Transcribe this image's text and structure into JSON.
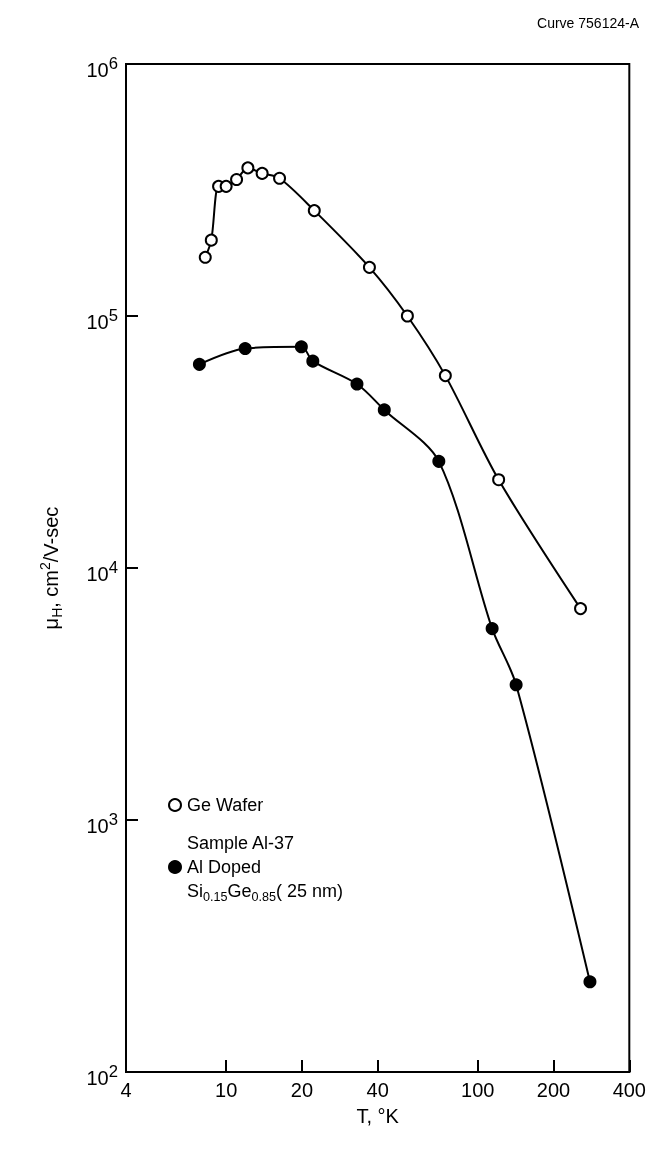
{
  "chart_data": {
    "type": "line",
    "xlabel": "T, °K",
    "ylabel": "μ$_{H}$, cm$^{2}$/V-sec",
    "annotations": [
      "Curve 756124-A"
    ],
    "log": "xy",
    "grid": false,
    "legend": "left",
    "line_style": "solid",
    "xlim": [
      4,
      400
    ],
    "xticks": [
      4,
      10,
      20,
      40,
      100,
      200,
      400
    ],
    "ylim": [
      100,
      1000000
    ],
    "yticks": [
      {
        "value": 100,
        "label": "10$^{2}$"
      },
      {
        "value": 1000,
        "label": "10$^{3}$"
      },
      {
        "value": 10000,
        "label": "10$^{4}$"
      },
      {
        "value": 100000,
        "label": "10$^{5}$"
      },
      {
        "value": 1000000,
        "label": "10$^{6}$"
      }
    ],
    "series": [
      {
        "name": "Ge Wafer",
        "color": "#000000",
        "marker": "open_circle",
        "x": [
          8.26,
          8.73,
          9.33,
          10.0,
          11.0,
          12.2,
          13.9,
          16.3,
          22.4,
          37.1,
          52.5,
          74.3,
          121,
          256
        ],
        "values": [
          171000,
          200000,
          327000,
          327000,
          348000,
          387000,
          368000,
          352000,
          262000,
          156000,
          100000,
          58000,
          22400,
          6900
        ]
      },
      {
        "name": "Sample Al-37\nAl Doped\nSi$_{0.15}$Ge$_{0.85}$( 25 nm)",
        "color": "#000000",
        "marker": "circle",
        "x": [
          7.83,
          11.9,
          19.9,
          22.1,
          33.1,
          42.5,
          70,
          114,
          142,
          279
        ],
        "values": [
          64300,
          74300,
          75500,
          66200,
          53700,
          42400,
          26500,
          5750,
          3440,
          228
        ]
      }
    ]
  }
}
